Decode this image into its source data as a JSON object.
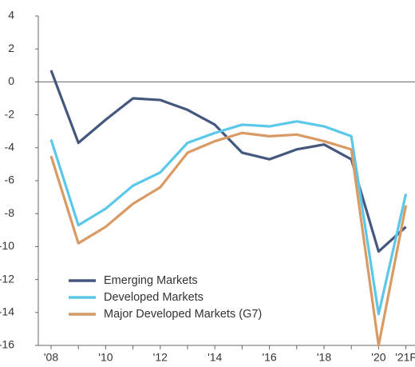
{
  "chart_data": {
    "type": "line",
    "categories": [
      "'08",
      null,
      "'10",
      null,
      "'12",
      null,
      "'14",
      null,
      "'16",
      null,
      "'18",
      null,
      "'20",
      "'21F"
    ],
    "series": [
      {
        "name": "Emerging Markets",
        "color": "#44587e",
        "values": [
          0.7,
          -3.7,
          -2.3,
          -1.0,
          -1.1,
          -1.7,
          -2.6,
          -4.3,
          -4.7,
          -4.1,
          -3.8,
          -4.7,
          -10.3,
          -8.8
        ]
      },
      {
        "name": "Developed Markets",
        "color": "#5bc8ea",
        "values": [
          -3.5,
          -8.7,
          -7.7,
          -6.3,
          -5.5,
          -3.7,
          -3.1,
          -2.6,
          -2.7,
          -2.4,
          -2.7,
          -3.3,
          -14.1,
          -6.8
        ]
      },
      {
        "name": "Major Developed Markets (G7)",
        "color": "#d99a64",
        "values": [
          -4.5,
          -9.8,
          -8.8,
          -7.4,
          -6.4,
          -4.3,
          -3.6,
          -3.1,
          -3.3,
          -3.2,
          -3.6,
          -4.1,
          -16.0,
          -7.5
        ]
      }
    ],
    "ylim": [
      -16,
      4
    ],
    "yticks": [
      -16,
      -14,
      -12,
      -10,
      -8,
      -6,
      -4,
      -2,
      0,
      2,
      4
    ]
  }
}
